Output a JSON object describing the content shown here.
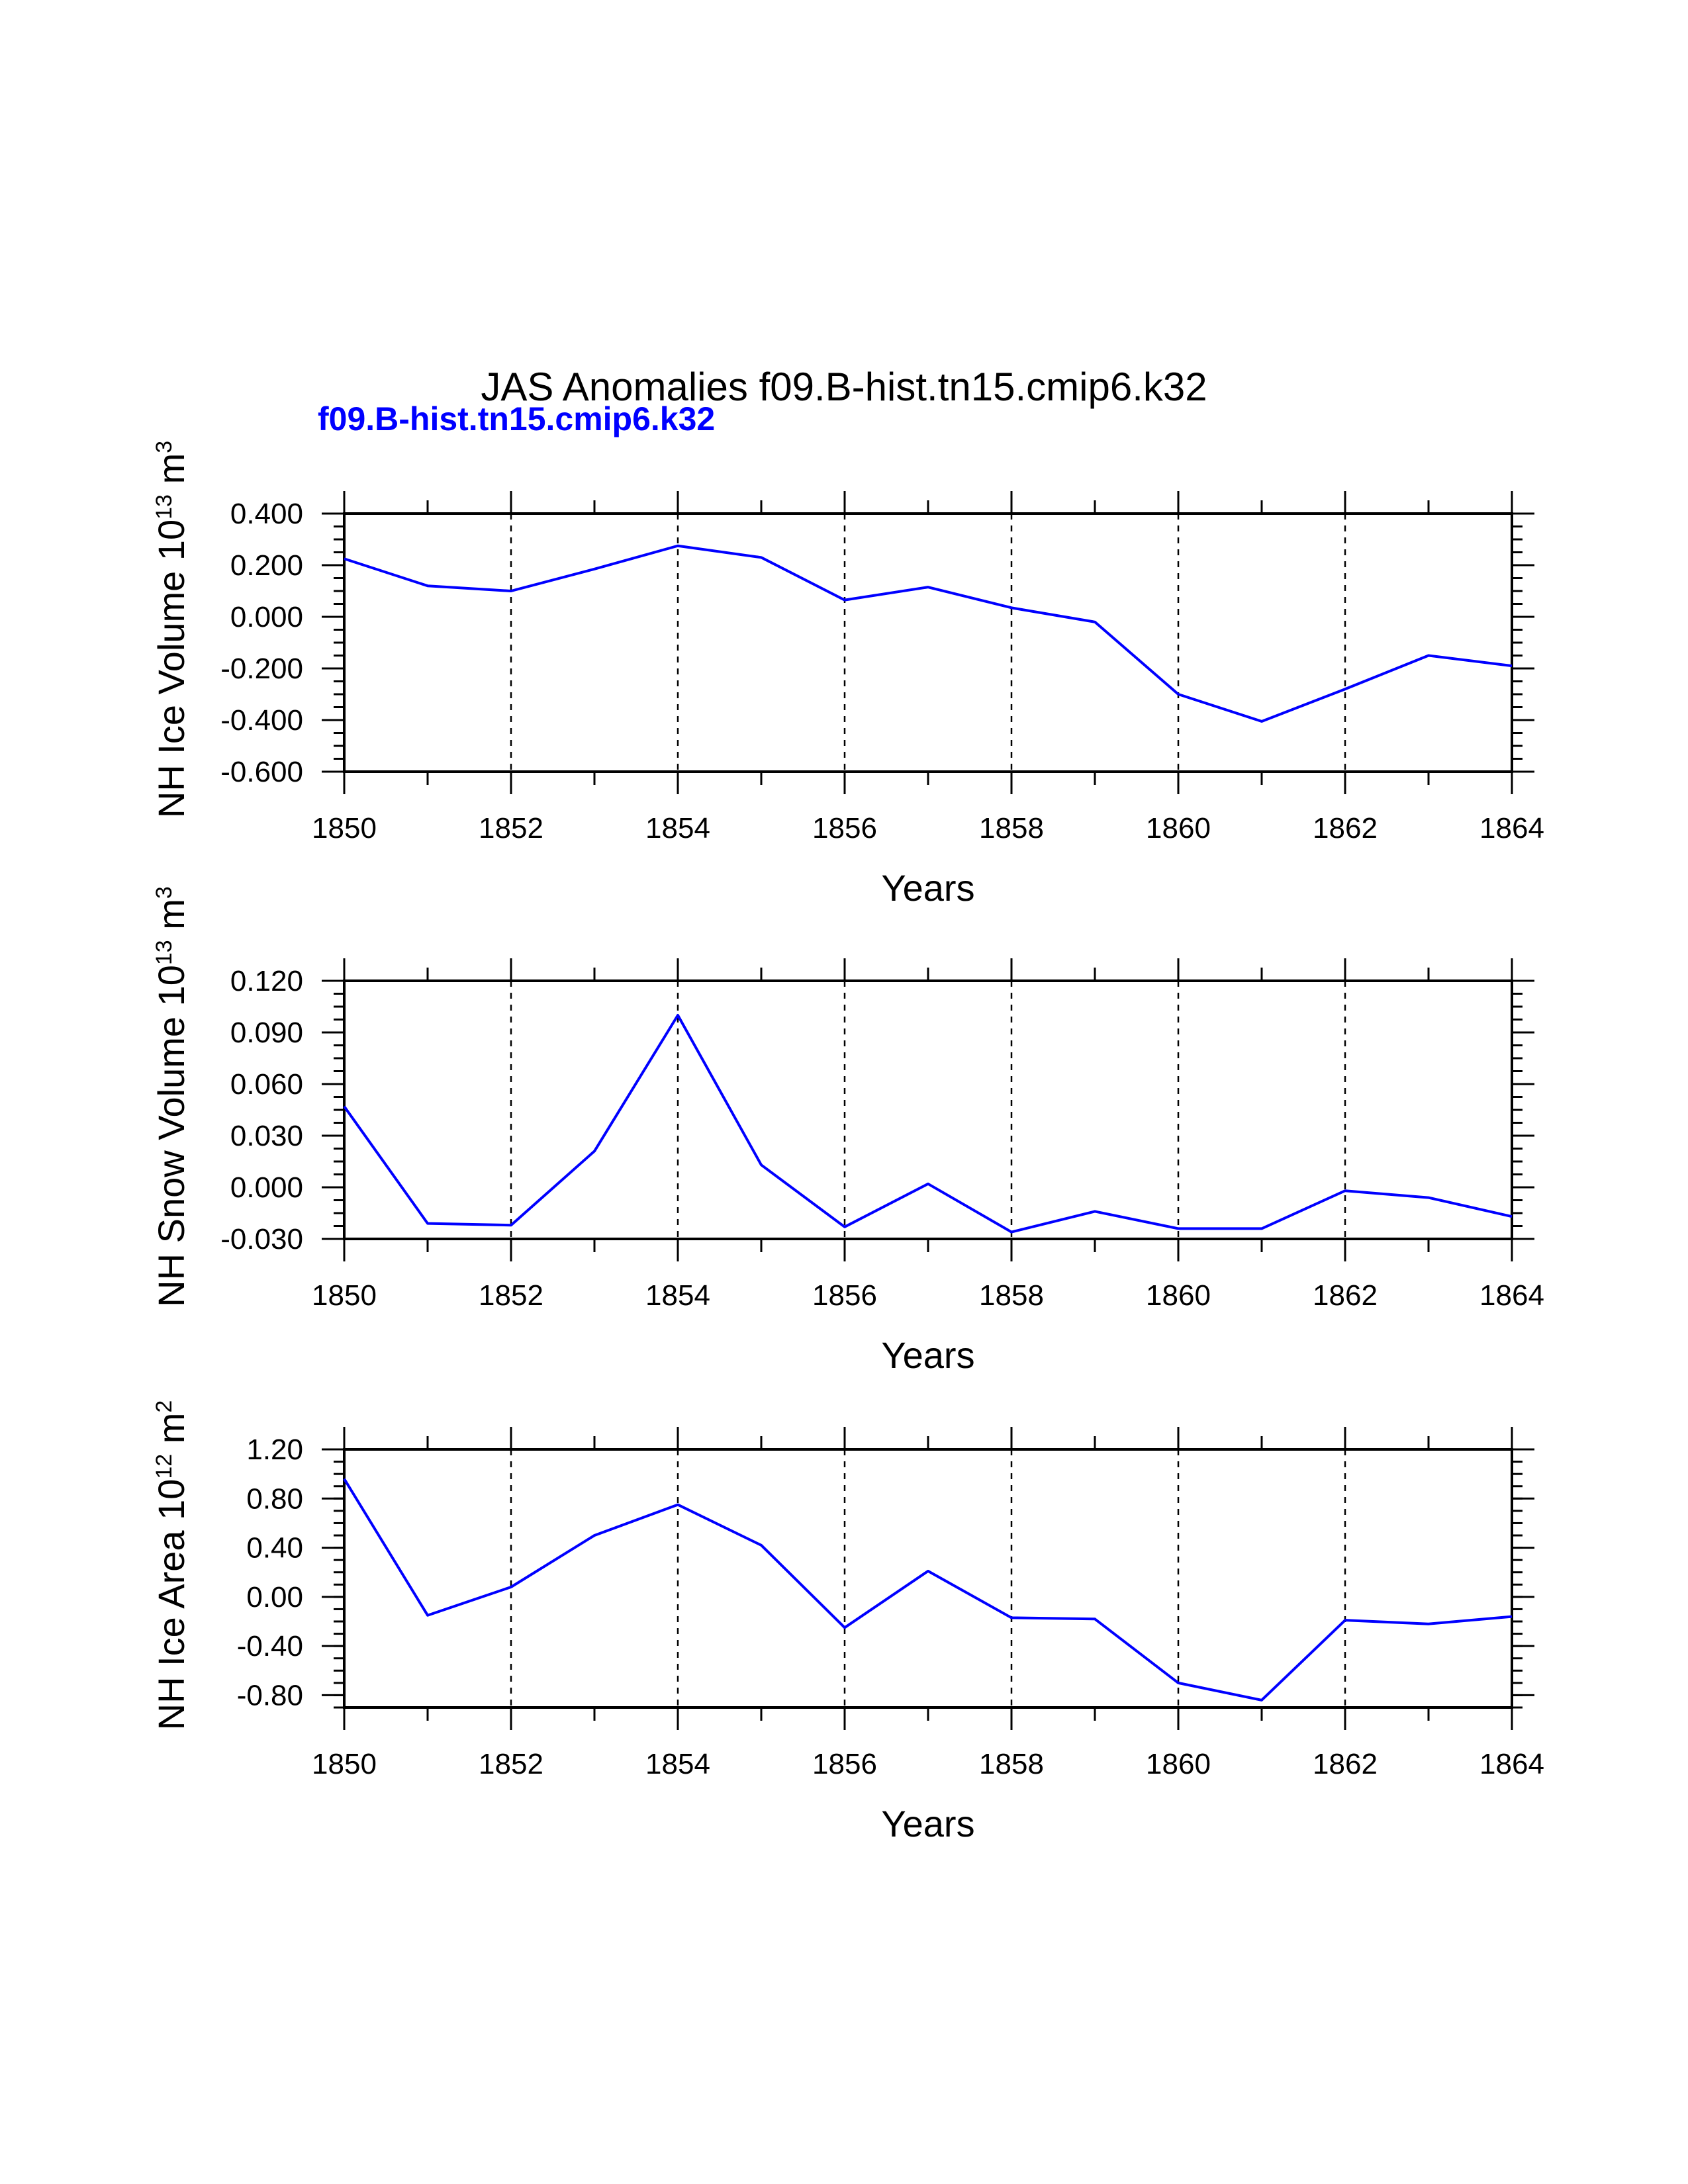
{
  "header": {
    "title": "JAS Anomalies f09.B-hist.tn15.cmip6.k32",
    "case_label": "f09.B-hist.tn15.cmip6.k32"
  },
  "colors": {
    "series": "#0000ff",
    "axis": "#000000"
  },
  "chart_data": [
    {
      "type": "line",
      "title": "",
      "xlabel": "Years",
      "ylabel": {
        "text": "NH Ice Volume 10",
        "exp": "13",
        "unit": " m",
        "unit_exp": "3"
      },
      "xlim": [
        1850,
        1864
      ],
      "ylim": [
        -0.6,
        0.4
      ],
      "x_ticks": [
        1850,
        1852,
        1854,
        1856,
        1858,
        1860,
        1862,
        1864
      ],
      "y_ticks": [
        -0.6,
        -0.4,
        -0.2,
        0.0,
        0.2,
        0.4
      ],
      "y_tick_labels": [
        "-0.600",
        "-0.400",
        "-0.200",
        "0.000",
        "0.200",
        "0.400"
      ],
      "y_minor_step": 0.05,
      "grid": "dashed vertical at major x ticks",
      "series": [
        {
          "name": "f09.B-hist.tn15.cmip6.k32",
          "x": [
            1850,
            1851,
            1852,
            1853,
            1854,
            1855,
            1856,
            1857,
            1858,
            1859,
            1860,
            1861,
            1862,
            1863,
            1864
          ],
          "values": [
            0.225,
            0.12,
            0.1,
            0.185,
            0.275,
            0.23,
            0.065,
            0.115,
            0.035,
            -0.02,
            -0.3,
            -0.405,
            -0.28,
            -0.15,
            -0.19
          ]
        }
      ]
    },
    {
      "type": "line",
      "title": "",
      "xlabel": "Years",
      "ylabel": {
        "text": "NH Snow Volume 10",
        "exp": "13",
        "unit": " m",
        "unit_exp": "3"
      },
      "xlim": [
        1850,
        1864
      ],
      "ylim": [
        -0.03,
        0.12
      ],
      "x_ticks": [
        1850,
        1852,
        1854,
        1856,
        1858,
        1860,
        1862,
        1864
      ],
      "y_ticks": [
        -0.03,
        0.0,
        0.03,
        0.06,
        0.09,
        0.12
      ],
      "y_tick_labels": [
        "-0.030",
        "0.000",
        "0.030",
        "0.060",
        "0.090",
        "0.120"
      ],
      "y_minor_step": 0.0075,
      "grid": "dashed vertical at major x ticks",
      "series": [
        {
          "name": "f09.B-hist.tn15.cmip6.k32",
          "x": [
            1850,
            1851,
            1852,
            1853,
            1854,
            1855,
            1856,
            1857,
            1858,
            1859,
            1860,
            1861,
            1862,
            1863,
            1864
          ],
          "values": [
            0.047,
            -0.021,
            -0.022,
            0.021,
            0.1,
            0.013,
            -0.023,
            0.002,
            -0.026,
            -0.014,
            -0.024,
            -0.024,
            -0.002,
            -0.006,
            -0.017
          ]
        }
      ]
    },
    {
      "type": "line",
      "title": "",
      "xlabel": "Years",
      "ylabel": {
        "text": "NH Ice Area 10",
        "exp": "12",
        "unit": " m",
        "unit_exp": "2"
      },
      "xlim": [
        1850,
        1864
      ],
      "ylim": [
        -0.9,
        1.2
      ],
      "x_ticks": [
        1850,
        1852,
        1854,
        1856,
        1858,
        1860,
        1862,
        1864
      ],
      "y_ticks": [
        -0.8,
        -0.4,
        0.0,
        0.4,
        0.8,
        1.2
      ],
      "y_tick_labels": [
        "-0.80",
        "-0.40",
        "0.00",
        "0.40",
        "0.80",
        "1.20"
      ],
      "y_minor_step": 0.1,
      "grid": "dashed vertical at major x ticks",
      "series": [
        {
          "name": "f09.B-hist.tn15.cmip6.k32",
          "x": [
            1850,
            1851,
            1852,
            1853,
            1854,
            1855,
            1856,
            1857,
            1858,
            1859,
            1860,
            1861,
            1862,
            1863,
            1864
          ],
          "values": [
            0.96,
            -0.15,
            0.08,
            0.5,
            0.75,
            0.42,
            -0.25,
            0.21,
            -0.17,
            -0.18,
            -0.7,
            -0.84,
            -0.19,
            -0.22,
            -0.16
          ]
        }
      ]
    }
  ]
}
